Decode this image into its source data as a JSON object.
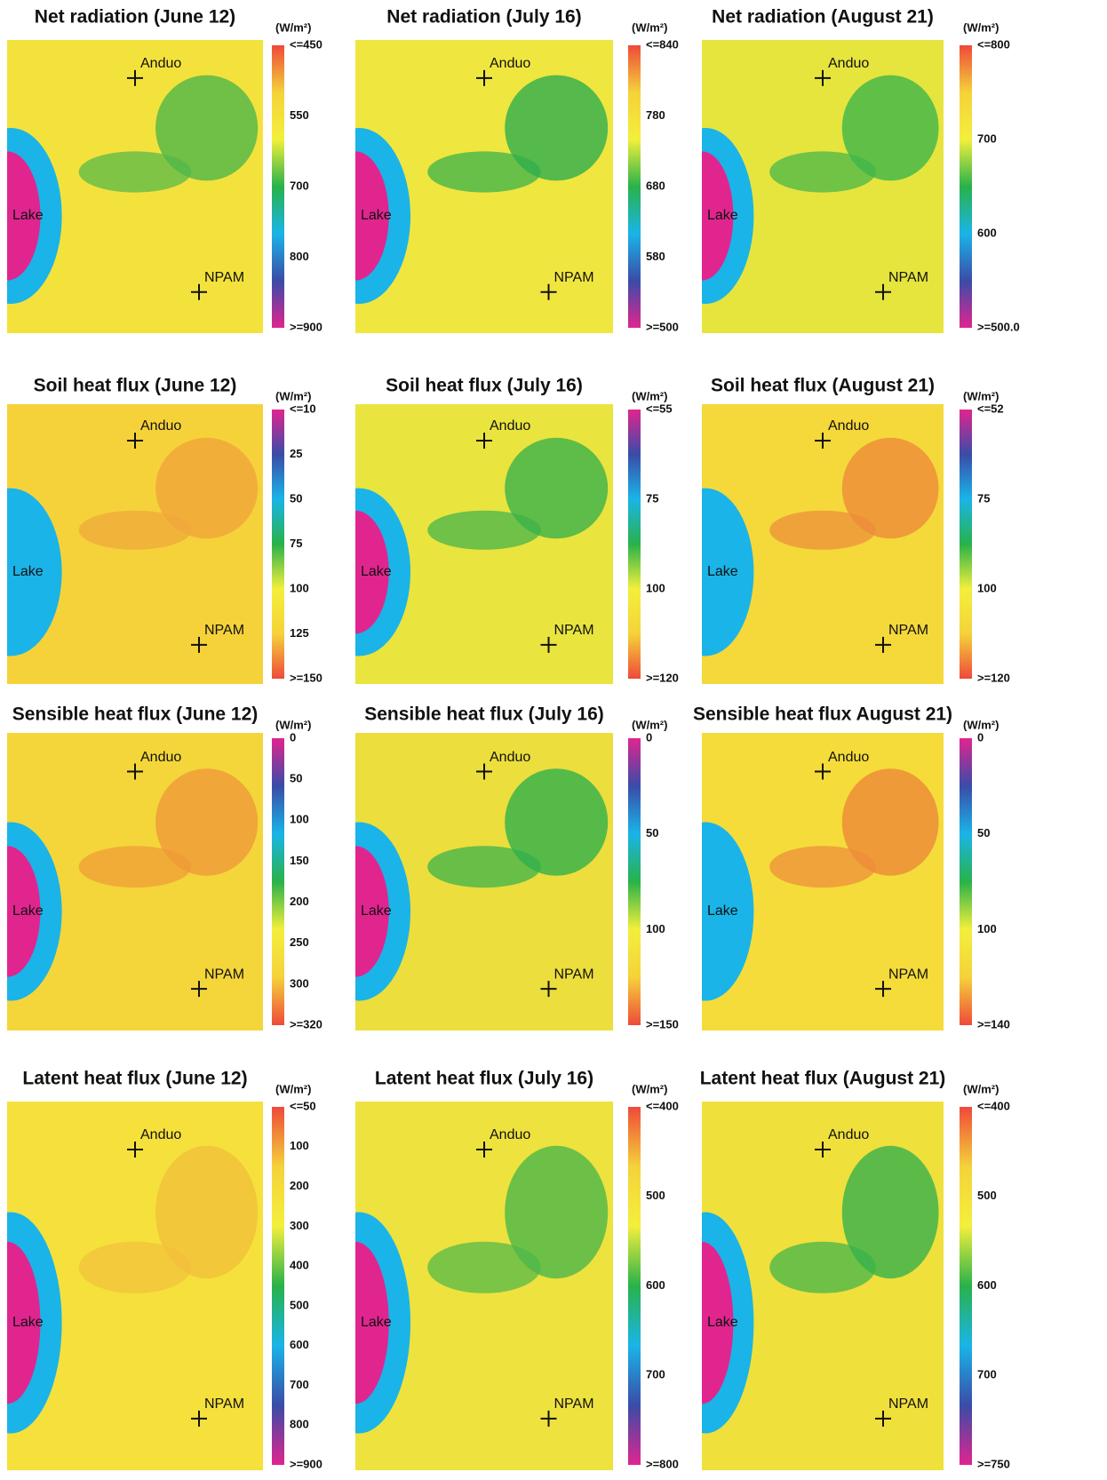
{
  "panels": [
    {
      "title": "Net radiation (June 12)",
      "unit": "(W/m²)",
      "sites": [
        "Anduo",
        "NPAM"
      ],
      "lake": "Lake",
      "colorbar": {
        "colors": [
          "#ee4a3a",
          "#f5d23a",
          "#f3ef3c",
          "#29b24a",
          "#1ab4e8",
          "#3a4ca8",
          "#e0258f"
        ],
        "ticks": [
          "<=450",
          "550",
          "700",
          "800",
          ">=900"
        ]
      }
    },
    {
      "title": "Net radiation (July 16)",
      "unit": "(W/m²)",
      "sites": [
        "Anduo",
        "NPAM"
      ],
      "lake": "Lake",
      "colorbar": {
        "colors": [
          "#ee4a3a",
          "#f5d23a",
          "#f3ef3c",
          "#29b24a",
          "#1ab4e8",
          "#3a4ca8",
          "#e0258f"
        ],
        "ticks": [
          "<=840",
          "780",
          "680",
          "580",
          ">=500"
        ]
      }
    },
    {
      "title": "Net radiation (August 21)",
      "unit": "(W/m²)",
      "sites": [
        "Anduo",
        "NPAM"
      ],
      "lake": "Lake",
      "colorbar": {
        "colors": [
          "#ee4a3a",
          "#f5d23a",
          "#f3ef3c",
          "#29b24a",
          "#1ab4e8",
          "#3a4ca8",
          "#e0258f"
        ],
        "ticks": [
          "<=800",
          "700",
          "600",
          ">=500.0"
        ]
      }
    },
    {
      "title": "Soil heat flux (June 12)",
      "unit": "(W/m²)",
      "sites": [
        "Anduo",
        "NPAM"
      ],
      "lake": "Lake",
      "colorbar": {
        "colors": [
          "#e0258f",
          "#3a4ca8",
          "#1ab4e8",
          "#29b24a",
          "#f3ef3c",
          "#f5d23a",
          "#ee4a3a"
        ],
        "ticks": [
          "<=10",
          "25",
          "50",
          "75",
          "100",
          "125",
          ">=150"
        ]
      }
    },
    {
      "title": "Soil heat flux (July 16)",
      "unit": "(W/m²)",
      "sites": [
        "Anduo",
        "NPAM"
      ],
      "lake": "Lake",
      "colorbar": {
        "colors": [
          "#e0258f",
          "#3a4ca8",
          "#1ab4e8",
          "#29b24a",
          "#f3ef3c",
          "#f5d23a",
          "#ee4a3a"
        ],
        "ticks": [
          "<=55",
          "75",
          "100",
          ">=120"
        ]
      }
    },
    {
      "title": "Soil heat flux (August 21)",
      "unit": "(W/m²)",
      "sites": [
        "Anduo",
        "NPAM"
      ],
      "lake": "Lake",
      "colorbar": {
        "colors": [
          "#e0258f",
          "#3a4ca8",
          "#1ab4e8",
          "#29b24a",
          "#f3ef3c",
          "#f5d23a",
          "#ee4a3a"
        ],
        "ticks": [
          "<=52",
          "75",
          "100",
          ">=120"
        ]
      }
    },
    {
      "title": "Sensible heat flux (June 12)",
      "unit": "(W/m²)",
      "sites": [
        "Anduo",
        "NPAM"
      ],
      "lake": "Lake",
      "colorbar": {
        "colors": [
          "#e0258f",
          "#3a4ca8",
          "#1ab4e8",
          "#29b24a",
          "#f3ef3c",
          "#f5d23a",
          "#ee4a3a"
        ],
        "ticks": [
          "0",
          "50",
          "100",
          "150",
          "200",
          "250",
          "300",
          ">=320"
        ]
      }
    },
    {
      "title": "Sensible heat flux (July 16)",
      "unit": "(W/m²)",
      "sites": [
        "Anduo",
        "NPAM"
      ],
      "lake": "Lake",
      "colorbar": {
        "colors": [
          "#e0258f",
          "#3a4ca8",
          "#1ab4e8",
          "#29b24a",
          "#f3ef3c",
          "#f5d23a",
          "#ee4a3a"
        ],
        "ticks": [
          "0",
          "50",
          "100",
          ">=150"
        ]
      }
    },
    {
      "title": "Sensible heat flux August 21)",
      "unit": "(W/m²)",
      "sites": [
        "Anduo",
        "NPAM"
      ],
      "lake": "Lake",
      "colorbar": {
        "colors": [
          "#e0258f",
          "#3a4ca8",
          "#1ab4e8",
          "#29b24a",
          "#f3ef3c",
          "#f5d23a",
          "#ee4a3a"
        ],
        "ticks": [
          "0",
          "50",
          "100",
          ">=140"
        ]
      }
    },
    {
      "title": "Latent heat flux (June 12)",
      "unit": "(W/m²)",
      "sites": [
        "Anduo",
        "NPAM"
      ],
      "lake": "Lake",
      "colorbar": {
        "colors": [
          "#ee4a3a",
          "#f5d23a",
          "#f3ef3c",
          "#29b24a",
          "#1ab4e8",
          "#3a4ca8",
          "#e0258f"
        ],
        "ticks": [
          "<=50",
          "100",
          "200",
          "300",
          "400",
          "500",
          "600",
          "700",
          "800",
          ">=900"
        ]
      }
    },
    {
      "title": "Latent heat flux (July 16)",
      "unit": "(W/m²)",
      "sites": [
        "Anduo",
        "NPAM"
      ],
      "lake": "Lake",
      "colorbar": {
        "colors": [
          "#ee4a3a",
          "#f5d23a",
          "#f3ef3c",
          "#29b24a",
          "#1ab4e8",
          "#3a4ca8",
          "#e0258f"
        ],
        "ticks": [
          "<=400",
          "500",
          "600",
          "700",
          ">=800"
        ]
      }
    },
    {
      "title": "Latent heat flux (August 21)",
      "unit": "(W/m²)",
      "sites": [
        "Anduo",
        "NPAM"
      ],
      "lake": "Lake",
      "colorbar": {
        "colors": [
          "#ee4a3a",
          "#f5d23a",
          "#f3ef3c",
          "#29b24a",
          "#1ab4e8",
          "#3a4ca8",
          "#e0258f"
        ],
        "ticks": [
          "<=400",
          "500",
          "600",
          "700",
          ">=750"
        ]
      }
    }
  ]
}
